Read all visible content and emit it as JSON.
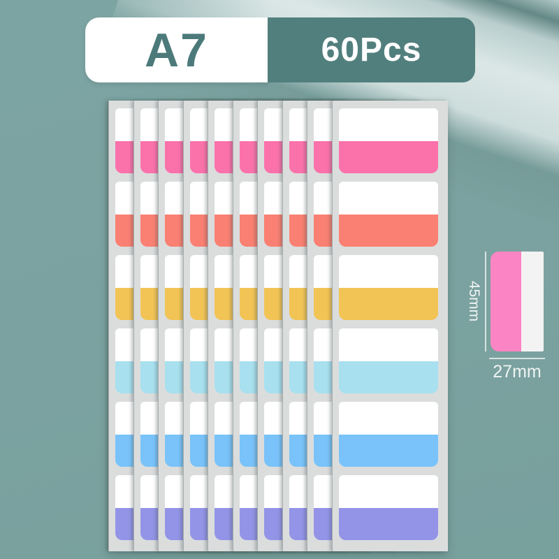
{
  "product": {
    "size_label": "A7",
    "count_label": "60Pcs"
  },
  "sheet_stack": {
    "sheet_count": 10,
    "tabs_per_sheet": 6,
    "total_tabs": 60,
    "tab_colors": [
      {
        "name": "pink",
        "hex": "#FB72AB"
      },
      {
        "name": "coral",
        "hex": "#F98072"
      },
      {
        "name": "yellow",
        "hex": "#F2C455"
      },
      {
        "name": "cyan",
        "hex": "#A8E0EF"
      },
      {
        "name": "blue",
        "hex": "#79C3FA"
      },
      {
        "name": "purple",
        "hex": "#9394E7"
      }
    ]
  },
  "dimensions": {
    "height_label": "45mm",
    "width_label": "27mm",
    "sample_tab_color": "#FB85C4"
  },
  "colors": {
    "background": "#7BA2A0",
    "background_top": "#7CA4A2",
    "background_bottom": "#78A09D",
    "banner_pill": "#FFFFFF",
    "banner_badge": "#517F7E",
    "size_text": "#4C7A7B",
    "count_text": "#FFFFFF",
    "sheet_paper": "#DBDDDD",
    "tab_top": "#FFFFFF",
    "measure_line": "#EFF4F3"
  }
}
